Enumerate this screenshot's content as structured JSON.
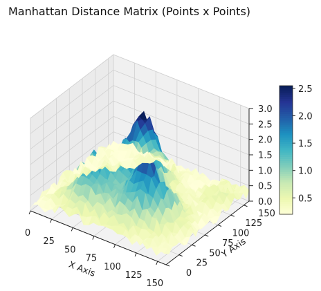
{
  "chart_data": {
    "type": "surface-3d",
    "title": "Manhattan Distance Matrix (Points x Points)",
    "xlabel": "X Axis",
    "ylabel": "Y Axis",
    "zlabel": "",
    "xlim": [
      0,
      160
    ],
    "ylim": [
      0,
      160
    ],
    "zlim": [
      0,
      3.0
    ],
    "x_ticks": [
      0,
      25,
      50,
      75,
      100,
      125,
      150
    ],
    "y_ticks": [
      0,
      25,
      50,
      75,
      100,
      125,
      150
    ],
    "z_ticks": [
      "0.0",
      "0.5",
      "1.0",
      "1.5",
      "2.0",
      "2.5",
      "3.0"
    ],
    "colorbar": {
      "colormap": "YlGnBu",
      "range": [
        0.2,
        2.55
      ],
      "ticks": [
        "0.5",
        "1.0",
        "1.5",
        "2.0",
        "2.5"
      ]
    },
    "surface_regions": [
      {
        "region": "x 0-30, y 0-25",
        "z_approx": 0.3
      },
      {
        "region": "x 30-60, y 20-80",
        "z_approx": 1.6
      },
      {
        "region": "x 50-90, y 70-120",
        "z_approx": 2.6
      },
      {
        "region": "x 80-130, y 40-90",
        "z_approx": 2.3
      },
      {
        "region": "x 120-160, y 100-160",
        "z_approx": 0.5
      }
    ],
    "grid": true
  }
}
